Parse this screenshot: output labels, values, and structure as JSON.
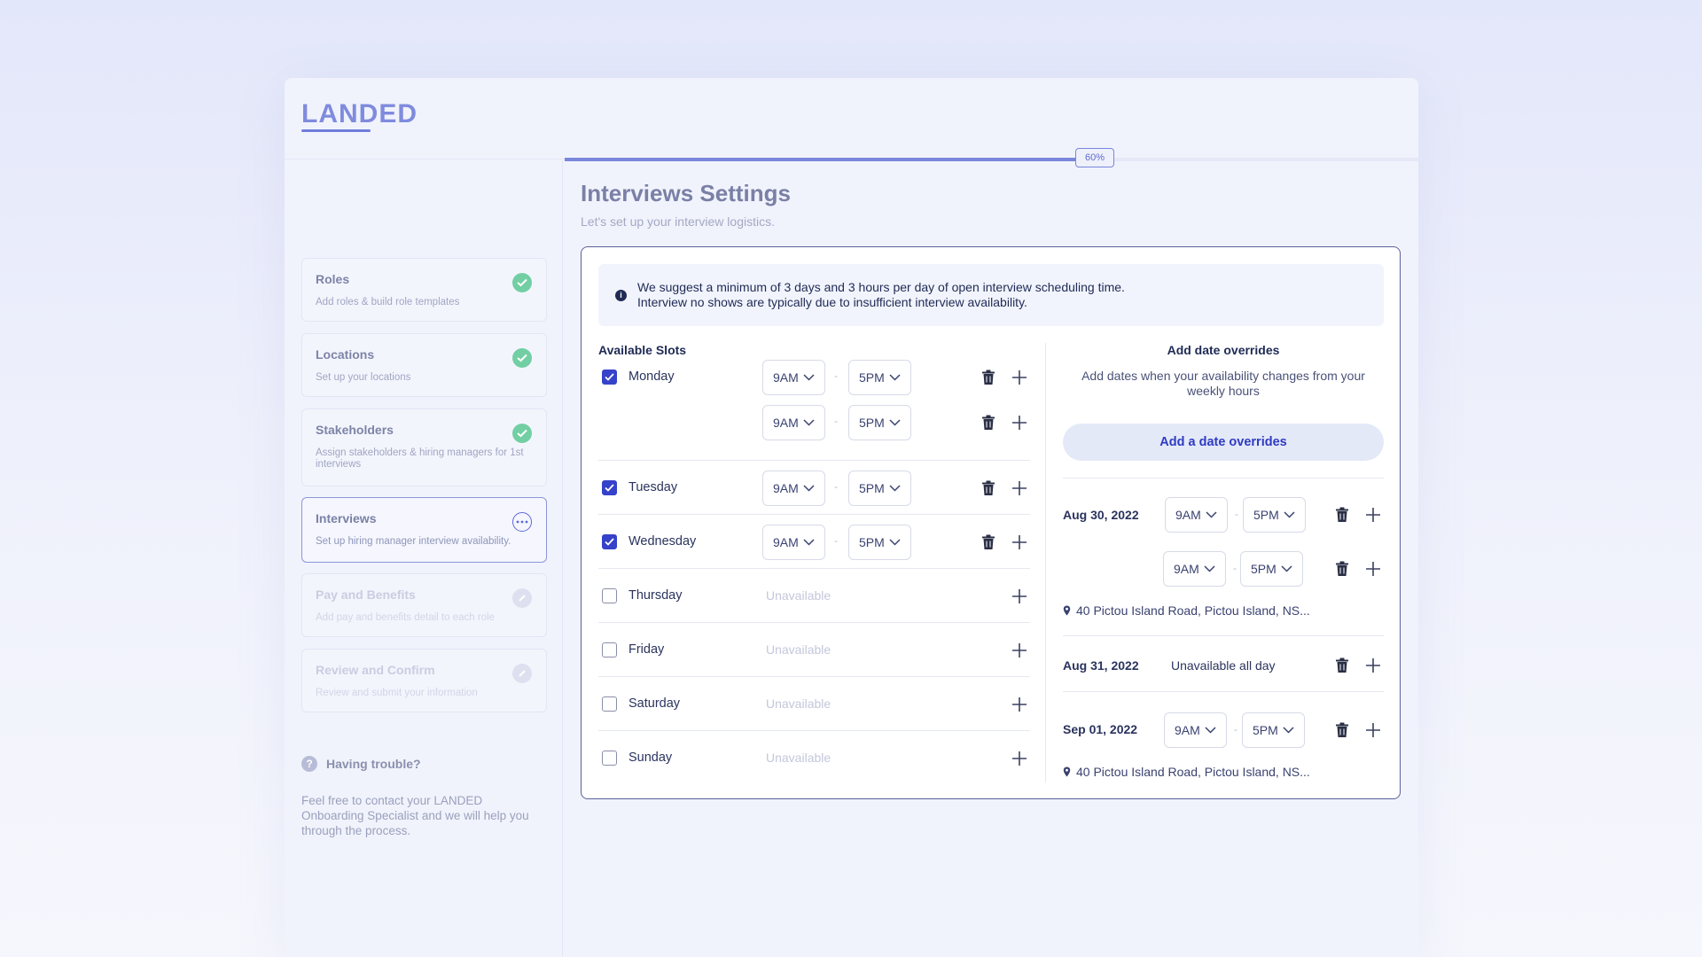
{
  "app": {
    "logo": "LANDED"
  },
  "sidebar": {
    "steps": [
      {
        "title": "Roles",
        "desc": "Add roles & build role templates",
        "status": "complete"
      },
      {
        "title": "Locations",
        "desc": "Set up your locations",
        "status": "complete"
      },
      {
        "title": "Stakeholders",
        "desc": "Assign stakeholders & hiring managers for 1st interviews",
        "status": "complete"
      },
      {
        "title": "Interviews",
        "desc": "Set up hiring manager interview availability.",
        "status": "active"
      },
      {
        "title": "Pay and Benefits",
        "desc": "Add pay and benefits detail to each role",
        "status": "disabled"
      },
      {
        "title": "Review and Confirm",
        "desc": "Review and submit your information",
        "status": "disabled"
      }
    ],
    "help": {
      "icon": "question-icon",
      "title": "Having trouble?",
      "text": "Feel free to contact your LANDED Onboarding Specialist and we will help you through the process."
    }
  },
  "progress": {
    "value": 0.6,
    "label": "60%"
  },
  "main": {
    "title": "Interviews Settings",
    "subtitle": "Let's set up your interview logistics.",
    "notice": {
      "line1": "We suggest a minimum of 3 days and 3 hours per day of open interview scheduling time.",
      "line2": "Interview no shows are typically due to insufficient interview availability."
    },
    "slots": {
      "title": "Available Slots",
      "dash": "-",
      "unavailable": "Unavailable",
      "days": [
        {
          "name": "Monday",
          "checked": true,
          "ranges": [
            [
              "9AM",
              "5PM"
            ],
            [
              "9AM",
              "5PM"
            ]
          ]
        },
        {
          "name": "Tuesday",
          "checked": true,
          "ranges": [
            [
              "9AM",
              "5PM"
            ]
          ]
        },
        {
          "name": "Wednesday",
          "checked": true,
          "ranges": [
            [
              "9AM",
              "5PM"
            ]
          ]
        },
        {
          "name": "Thursday",
          "checked": false,
          "ranges": []
        },
        {
          "name": "Friday",
          "checked": false,
          "ranges": []
        },
        {
          "name": "Saturday",
          "checked": false,
          "ranges": []
        },
        {
          "name": "Sunday",
          "checked": false,
          "ranges": []
        }
      ]
    },
    "overrides": {
      "title": "Add date overrides",
      "desc": "Add dates when your availability changes from your weekly hours",
      "add_label": "Add a date overrides",
      "entries": [
        {
          "date": "Aug 30, 2022",
          "ranges": [
            [
              "9AM",
              "5PM"
            ],
            [
              "9AM",
              "5PM"
            ]
          ],
          "location": "40 Pictou Island Road, Pictou Island, NS..."
        },
        {
          "date": "Aug 31, 2022",
          "text": "Unavailable all day"
        },
        {
          "date": "Sep 01, 2022",
          "ranges": [
            [
              "9AM",
              "5PM"
            ]
          ],
          "location": "40 Pictou Island Road, Pictou Island, NS..."
        }
      ]
    }
  }
}
